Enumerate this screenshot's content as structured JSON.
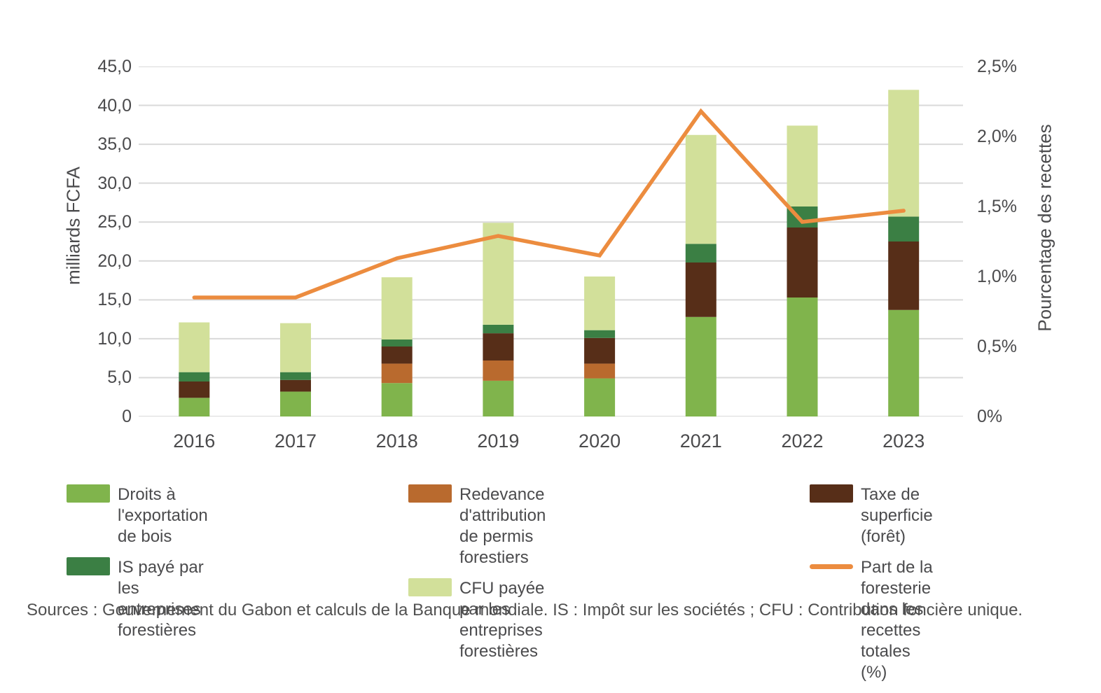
{
  "chart_data": {
    "type": "bar",
    "subtype": "stacked-bars-with-line-overlay",
    "categories": [
      "2016",
      "2017",
      "2018",
      "2019",
      "2020",
      "2021",
      "2022",
      "2023"
    ],
    "left_axis": {
      "title": "milliards FCFA",
      "min": 0,
      "max": 45,
      "step": 5,
      "tick_labels": [
        "0",
        "5,0",
        "10,0",
        "15,0",
        "20,0",
        "25,0",
        "30,0",
        "35,0",
        "40,0",
        "45,0"
      ]
    },
    "right_axis": {
      "title": "Pourcentage des recettes",
      "min": 0,
      "max": 2.5,
      "step": 0.5,
      "tick_labels": [
        "0%",
        "0,5%",
        "1,0%",
        "1,5%",
        "2,0%",
        "2,5%"
      ]
    },
    "grid": true,
    "gridline_color": "#d9d9d9",
    "series": [
      {
        "name": "Droits à l'exportation de bois",
        "type": "bar",
        "axis": "left",
        "color": "#80b44c",
        "values": [
          2.4,
          3.2,
          4.3,
          4.6,
          4.9,
          12.8,
          15.3,
          13.7
        ]
      },
      {
        "name": "Redevance d'attribution de permis forestiers",
        "type": "bar",
        "axis": "left",
        "color": "#b96a2e",
        "values": [
          0,
          0,
          2.5,
          2.6,
          1.9,
          0,
          0,
          0
        ]
      },
      {
        "name": "Taxe de superficie (forêt)",
        "type": "bar",
        "axis": "left",
        "color": "#572e18",
        "values": [
          2.1,
          1.5,
          2.2,
          3.5,
          3.3,
          7.0,
          9.0,
          8.8
        ]
      },
      {
        "name": "IS payé par les entreprises forestières",
        "type": "bar",
        "axis": "left",
        "color": "#3b7f44",
        "values": [
          1.2,
          1.0,
          0.9,
          1.1,
          1.0,
          2.4,
          2.7,
          3.2
        ]
      },
      {
        "name": "CFU payée par les entreprises forestières",
        "type": "bar",
        "axis": "left",
        "color": "#d2e09a",
        "values": [
          6.4,
          6.3,
          8.0,
          13.1,
          6.9,
          14.0,
          10.4,
          16.3
        ]
      },
      {
        "name": "Part de la foresterie dans les recettes totales (%)",
        "type": "line",
        "axis": "right",
        "color": "#ec8c3f",
        "values": [
          0.85,
          0.85,
          1.13,
          1.29,
          1.15,
          2.18,
          1.39,
          1.47
        ]
      }
    ],
    "stack_order_bottom_to_top": [
      0,
      1,
      2,
      3,
      4
    ],
    "bar_totals": [
      12.1,
      12.0,
      17.9,
      24.9,
      18.0,
      36.2,
      37.4,
      42.0
    ],
    "legend": {
      "position": "bottom",
      "columns": [
        [
          0,
          3
        ],
        [
          1,
          4
        ],
        [
          2,
          5
        ]
      ]
    }
  },
  "source_note": "Sources : Gouvernement du Gabon et calculs de la Banque mondiale. IS : Impôt sur les sociétés ; CFU : Contribution foncière unique."
}
